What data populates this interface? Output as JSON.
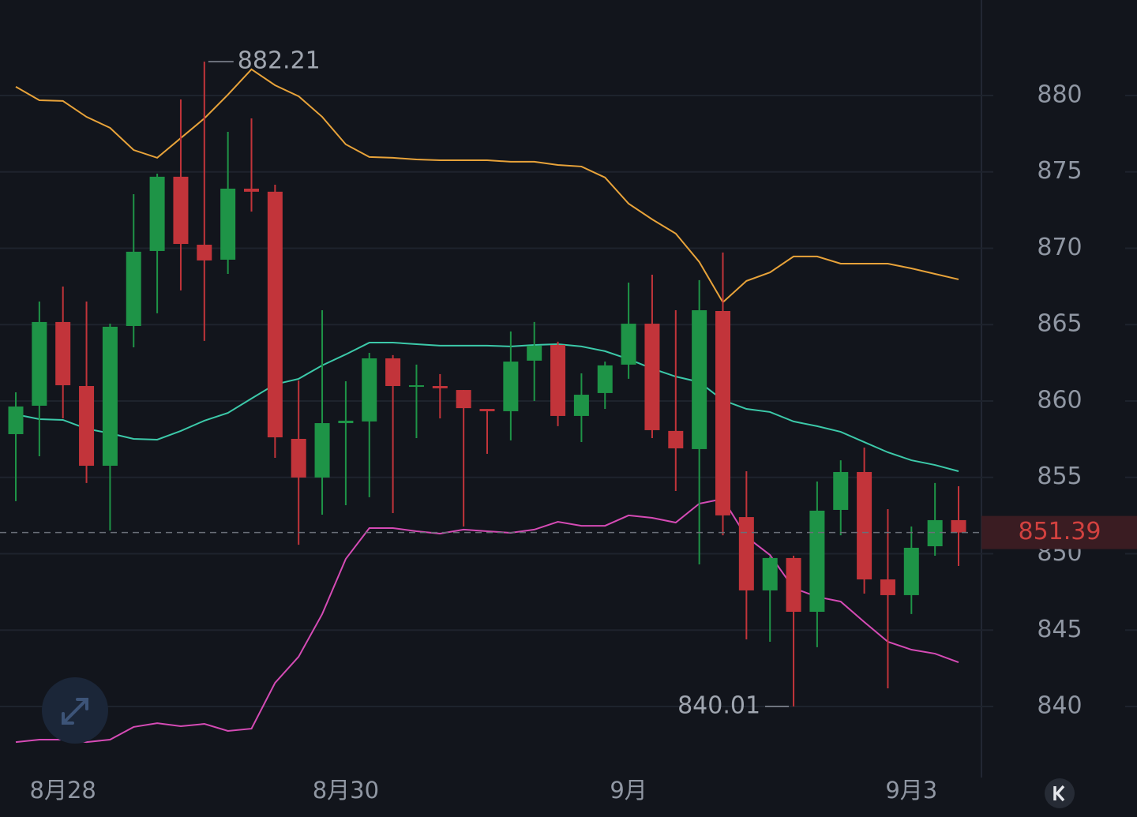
{
  "chart_data": {
    "type": "candlestick",
    "categories": [
      null,
      null,
      "8月28",
      null,
      null,
      null,
      null,
      null,
      null,
      null,
      null,
      null,
      null,
      null,
      "8月30",
      null,
      null,
      null,
      null,
      null,
      null,
      null,
      null,
      null,
      null,
      null,
      "9月",
      null,
      null,
      null,
      null,
      null,
      null,
      null,
      null,
      null,
      null,
      null,
      "9月3",
      null,
      null
    ],
    "open": [
      857.83,
      859.69,
      865.17,
      860.98,
      855.76,
      864.91,
      869.82,
      874.68,
      870.23,
      869.25,
      873.9,
      873.7,
      857.52,
      854.99,
      858.55,
      858.66,
      862.79,
      860.93,
      860.98,
      860.72,
      859.48,
      859.33,
      862.64,
      863.67,
      859.02,
      860.52,
      862.38,
      865.06,
      858.04,
      856.85,
      865.89,
      852.4,
      847.6,
      849.72,
      846.2,
      852.87,
      855.35,
      848.32,
      847.29,
      850.49,
      852.2
    ],
    "high": [
      860.57,
      866.51,
      867.49,
      866.51,
      865.06,
      873.54,
      874.88,
      879.74,
      882.21,
      877.62,
      878.5,
      874.16,
      861.34,
      865.94,
      861.29,
      863.15,
      863.0,
      862.38,
      861.76,
      860.72,
      859.48,
      864.55,
      865.17,
      863.88,
      861.81,
      862.58,
      867.75,
      868.27,
      865.94,
      867.91,
      869.72,
      855.4,
      849.82,
      849.87,
      854.73,
      856.12,
      856.95,
      852.92,
      851.78,
      854.63,
      854.42
    ],
    "low": [
      853.44,
      856.38,
      858.86,
      854.63,
      851.52,
      863.51,
      865.74,
      867.24,
      863.93,
      868.32,
      872.4,
      856.28,
      850.59,
      852.56,
      853.18,
      853.7,
      852.66,
      857.57,
      858.86,
      851.78,
      856.54,
      857.42,
      860.0,
      858.35,
      857.31,
      859.48,
      861.45,
      857.57,
      854.11,
      849.3,
      851.21,
      844.39,
      844.24,
      840.01,
      843.88,
      851.21,
      847.39,
      841.19,
      846.05,
      849.87,
      849.2
    ],
    "close": [
      859.64,
      865.17,
      861.03,
      855.76,
      864.86,
      869.77,
      874.68,
      870.28,
      869.2,
      873.9,
      873.7,
      857.62,
      854.99,
      858.55,
      858.71,
      862.79,
      860.98,
      861.03,
      860.83,
      859.53,
      859.33,
      862.58,
      863.62,
      859.02,
      860.41,
      862.33,
      865.06,
      858.09,
      856.9,
      865.94,
      852.51,
      847.6,
      849.72,
      846.2,
      852.82,
      855.35,
      848.32,
      847.29,
      850.39,
      852.2,
      851.39
    ],
    "up_color": "#1e9447",
    "down_color": "#c2343a",
    "series": [
      {
        "color": "#e8a33a",
        "values": [
          880.57,
          879.69,
          879.64,
          878.6,
          877.88,
          876.43,
          875.92,
          877.21,
          878.5,
          880.05,
          881.71,
          880.67,
          879.95,
          878.6,
          876.8,
          875.97,
          875.92,
          875.81,
          875.76,
          875.76,
          875.76,
          875.66,
          875.66,
          875.45,
          875.35,
          874.63,
          872.92,
          871.89,
          870.96,
          869.1,
          866.46,
          867.86,
          868.42,
          869.46,
          869.46,
          868.99,
          868.99,
          868.99,
          868.68,
          868.32,
          867.96
        ]
      },
      {
        "color": "#3cc9a9",
        "values": [
          859.12,
          858.81,
          858.76,
          858.19,
          857.88,
          857.52,
          857.47,
          858.04,
          858.71,
          859.22,
          860.16,
          861.09,
          861.45,
          862.33,
          863.05,
          863.82,
          863.82,
          863.72,
          863.62,
          863.62,
          863.62,
          863.57,
          863.67,
          863.72,
          863.57,
          863.26,
          862.74,
          862.12,
          861.6,
          861.24,
          860.05,
          859.48,
          859.28,
          858.66,
          858.35,
          857.98,
          857.31,
          856.64,
          856.12,
          855.81,
          855.4
        ]
      },
      {
        "color": "#d54bb5",
        "values": [
          837.67,
          837.83,
          837.83,
          837.67,
          837.83,
          838.66,
          838.91,
          838.71,
          838.86,
          838.4,
          838.55,
          841.55,
          843.26,
          846.05,
          849.66,
          851.68,
          851.68,
          851.47,
          851.32,
          851.58,
          851.47,
          851.37,
          851.58,
          852.09,
          851.83,
          851.83,
          852.51,
          852.35,
          852.04,
          853.28,
          853.59,
          851.11,
          849.92,
          847.75,
          847.18,
          846.87,
          845.53,
          844.24,
          843.72,
          843.46,
          842.89
        ]
      }
    ],
    "ylim": [
      835.35,
      886.25
    ],
    "yticks": [
      840,
      845,
      850,
      855,
      860,
      865,
      870,
      875,
      880
    ],
    "grid": true
  }
}
